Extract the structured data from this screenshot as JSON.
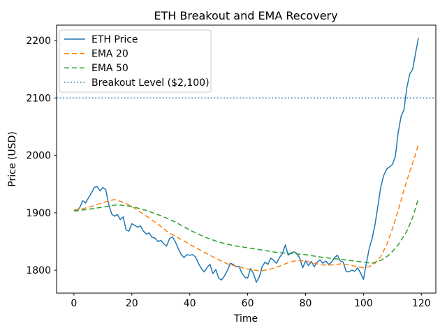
{
  "chart_data": {
    "type": "line",
    "title": "ETH Breakout and EMA Recovery",
    "xlabel": "Time",
    "ylabel": "Price (USD)",
    "xlim": [
      -6,
      125
    ],
    "ylim": [
      1760,
      2227
    ],
    "x_ticks": [
      0,
      20,
      40,
      60,
      80,
      100,
      120
    ],
    "y_ticks": [
      1800,
      1900,
      2000,
      2100,
      2200
    ],
    "grid": false,
    "legend_position": "upper-left",
    "series": [
      {
        "name": "ETH Price",
        "kind": "line",
        "line_style": "solid",
        "color": "#1f77b4",
        "x_start": 0,
        "x_step": 1,
        "values": [
          1905,
          1903,
          1909,
          1921,
          1917,
          1926,
          1934,
          1944,
          1946,
          1938,
          1944,
          1940,
          1915,
          1898,
          1894,
          1897,
          1888,
          1893,
          1870,
          1868,
          1881,
          1878,
          1875,
          1877,
          1868,
          1863,
          1865,
          1857,
          1856,
          1850,
          1852,
          1846,
          1842,
          1855,
          1858,
          1850,
          1838,
          1828,
          1822,
          1827,
          1826,
          1827,
          1823,
          1812,
          1803,
          1797,
          1805,
          1810,
          1794,
          1801,
          1786,
          1783,
          1790,
          1799,
          1812,
          1810,
          1806,
          1807,
          1795,
          1788,
          1786,
          1803,
          1794,
          1779,
          1788,
          1806,
          1814,
          1810,
          1821,
          1817,
          1812,
          1822,
          1829,
          1844,
          1826,
          1830,
          1832,
          1829,
          1821,
          1804,
          1816,
          1808,
          1815,
          1806,
          1814,
          1818,
          1812,
          1816,
          1810,
          1814,
          1822,
          1826,
          1816,
          1814,
          1798,
          1797,
          1800,
          1798,
          1804,
          1795,
          1784,
          1812,
          1838,
          1855,
          1880,
          1912,
          1945,
          1965,
          1976,
          1980,
          1984,
          1998,
          2040,
          2068,
          2080,
          2118,
          2142,
          2150,
          2178,
          2205
        ]
      },
      {
        "name": "EMA 20",
        "kind": "line",
        "line_style": "dashed",
        "color": "#ff7f0e",
        "points": [
          [
            0,
            1905
          ],
          [
            3,
            1907
          ],
          [
            6,
            1911
          ],
          [
            9,
            1916
          ],
          [
            12,
            1921
          ],
          [
            14,
            1923
          ],
          [
            16,
            1920
          ],
          [
            18,
            1916
          ],
          [
            20,
            1911
          ],
          [
            23,
            1901
          ],
          [
            26,
            1891
          ],
          [
            29,
            1880
          ],
          [
            32,
            1868
          ],
          [
            35,
            1859
          ],
          [
            38,
            1851
          ],
          [
            41,
            1842
          ],
          [
            44,
            1834
          ],
          [
            47,
            1826
          ],
          [
            50,
            1818
          ],
          [
            53,
            1811
          ],
          [
            56,
            1807
          ],
          [
            59,
            1803
          ],
          [
            62,
            1800
          ],
          [
            65,
            1799
          ],
          [
            68,
            1802
          ],
          [
            71,
            1807
          ],
          [
            74,
            1813
          ],
          [
            77,
            1817
          ],
          [
            80,
            1816
          ],
          [
            83,
            1812
          ],
          [
            86,
            1809
          ],
          [
            89,
            1809
          ],
          [
            92,
            1811
          ],
          [
            95,
            1809
          ],
          [
            98,
            1806
          ],
          [
            100,
            1804
          ],
          [
            102,
            1806
          ],
          [
            104,
            1812
          ],
          [
            106,
            1824
          ],
          [
            108,
            1844
          ],
          [
            110,
            1872
          ],
          [
            112,
            1904
          ],
          [
            114,
            1940
          ],
          [
            116,
            1972
          ],
          [
            118,
            2002
          ],
          [
            119,
            2020
          ]
        ]
      },
      {
        "name": "EMA 50",
        "kind": "line",
        "line_style": "dashed",
        "color": "#2ca02c",
        "points": [
          [
            0,
            1903
          ],
          [
            5,
            1906
          ],
          [
            10,
            1910
          ],
          [
            15,
            1914
          ],
          [
            20,
            1911
          ],
          [
            25,
            1904
          ],
          [
            30,
            1895
          ],
          [
            35,
            1884
          ],
          [
            40,
            1870
          ],
          [
            45,
            1858
          ],
          [
            50,
            1849
          ],
          [
            55,
            1843
          ],
          [
            60,
            1839
          ],
          [
            65,
            1835
          ],
          [
            70,
            1831
          ],
          [
            75,
            1829
          ],
          [
            80,
            1827
          ],
          [
            85,
            1823
          ],
          [
            90,
            1820
          ],
          [
            95,
            1817
          ],
          [
            100,
            1814
          ],
          [
            103,
            1812
          ],
          [
            106,
            1817
          ],
          [
            109,
            1827
          ],
          [
            112,
            1844
          ],
          [
            115,
            1868
          ],
          [
            117,
            1892
          ],
          [
            119,
            1925
          ]
        ]
      },
      {
        "name": "Breakout Level ($2,100)",
        "kind": "hline",
        "line_style": "dotted",
        "color": "#1f77b4",
        "level": 2100
      }
    ]
  }
}
